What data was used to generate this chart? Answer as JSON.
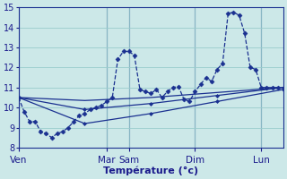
{
  "xlabel": "Température (°c)",
  "bg_color": "#cce8e8",
  "line_color": "#1a3090",
  "grid_color": "#99cccc",
  "axis_color": "#1a1a8c",
  "tick_color": "#1a1a8c",
  "ylim": [
    8,
    15
  ],
  "xlim": [
    0,
    48
  ],
  "yticks": [
    8,
    9,
    10,
    11,
    12,
    13,
    14,
    15
  ],
  "day_labels": [
    "Ven",
    "Mar",
    "Sam",
    "Dim",
    "Lun"
  ],
  "day_positions": [
    0,
    16,
    20,
    32,
    44
  ],
  "series1_x": [
    0,
    1,
    2,
    3,
    4,
    5,
    6,
    7,
    8,
    9,
    10,
    11,
    12,
    13,
    14,
    15,
    16,
    17,
    18,
    19,
    20,
    21,
    22,
    23,
    24,
    25,
    26,
    27,
    28,
    29,
    30,
    31,
    32,
    33,
    34,
    35,
    36,
    37,
    38,
    39,
    40,
    41,
    42,
    43,
    44,
    45,
    46,
    47
  ],
  "series1_y": [
    10.5,
    9.8,
    9.3,
    9.3,
    8.8,
    8.7,
    8.5,
    8.7,
    8.8,
    9.0,
    9.3,
    9.6,
    9.7,
    9.9,
    10.0,
    10.1,
    10.3,
    10.5,
    12.4,
    12.8,
    12.8,
    12.6,
    10.9,
    10.8,
    10.7,
    10.9,
    10.5,
    10.8,
    11.0,
    11.05,
    10.4,
    10.3,
    10.8,
    11.15,
    11.5,
    11.3,
    11.9,
    12.2,
    14.7,
    14.75,
    14.6,
    13.7,
    12.0,
    11.9,
    11.0,
    11.0,
    11.0,
    11.0
  ],
  "series2_x": [
    0,
    12,
    24,
    36,
    48
  ],
  "series2_y": [
    10.5,
    10.35,
    10.5,
    10.75,
    11.0
  ],
  "series3_x": [
    0,
    12,
    24,
    36,
    48
  ],
  "series3_y": [
    10.5,
    9.9,
    10.2,
    10.6,
    11.0
  ],
  "series4_x": [
    0,
    12,
    24,
    36,
    48
  ],
  "series4_y": [
    10.5,
    9.2,
    9.7,
    10.3,
    10.9
  ]
}
